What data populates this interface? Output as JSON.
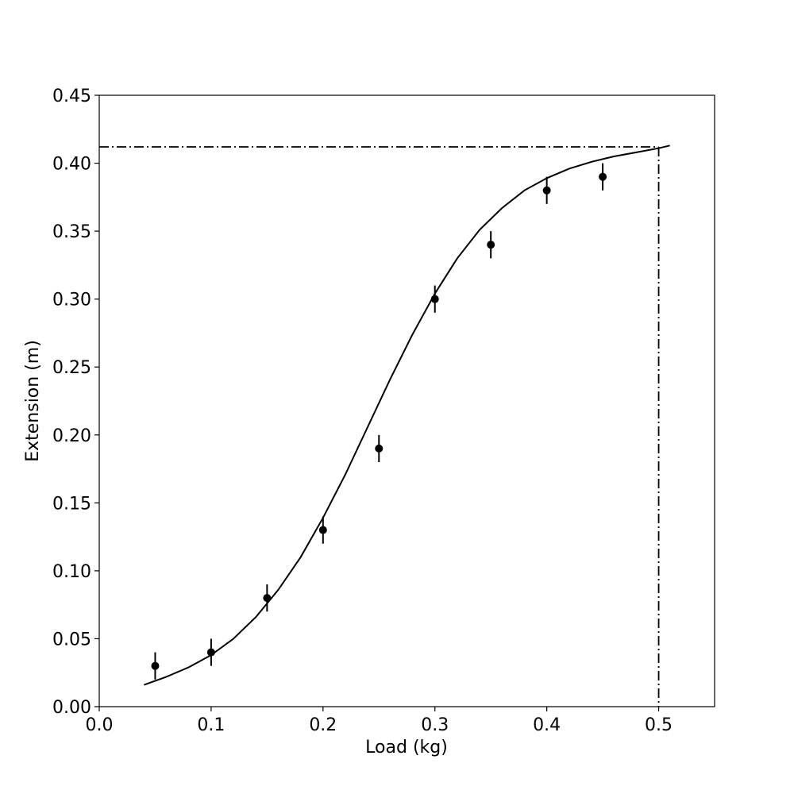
{
  "chart_data": {
    "type": "scatter",
    "title": "",
    "xlabel": "Load (kg)",
    "ylabel": "Extension (m)",
    "xlim": [
      0.0,
      0.55
    ],
    "ylim": [
      0.0,
      0.45
    ],
    "grid": false,
    "x_ticks": [
      0.0,
      0.1,
      0.2,
      0.3,
      0.4,
      0.5
    ],
    "x_tick_labels": [
      "0.0",
      "0.1",
      "0.2",
      "0.3",
      "0.4",
      "0.5"
    ],
    "y_ticks": [
      0.0,
      0.05,
      0.1,
      0.15,
      0.2,
      0.25,
      0.3,
      0.35,
      0.4,
      0.45
    ],
    "y_tick_labels": [
      "0.00",
      "0.05",
      "0.10",
      "0.15",
      "0.20",
      "0.25",
      "0.30",
      "0.35",
      "0.40",
      "0.45"
    ],
    "points": {
      "x": [
        0.05,
        0.1,
        0.15,
        0.2,
        0.25,
        0.3,
        0.35,
        0.4,
        0.45
      ],
      "y": [
        0.03,
        0.04,
        0.08,
        0.13,
        0.19,
        0.3,
        0.34,
        0.38,
        0.39
      ],
      "yerr": [
        0.01,
        0.01,
        0.01,
        0.01,
        0.01,
        0.01,
        0.01,
        0.01,
        0.01
      ]
    },
    "fit_curve": {
      "x": [
        0.04,
        0.06,
        0.08,
        0.1,
        0.12,
        0.14,
        0.16,
        0.18,
        0.2,
        0.22,
        0.24,
        0.26,
        0.28,
        0.3,
        0.32,
        0.34,
        0.36,
        0.38,
        0.4,
        0.42,
        0.44,
        0.46,
        0.48,
        0.5,
        0.51
      ],
      "y": [
        0.016,
        0.022,
        0.029,
        0.038,
        0.05,
        0.066,
        0.086,
        0.11,
        0.139,
        0.171,
        0.206,
        0.241,
        0.274,
        0.304,
        0.33,
        0.351,
        0.367,
        0.38,
        0.389,
        0.396,
        0.401,
        0.405,
        0.408,
        0.411,
        0.413
      ]
    },
    "reference_lines": {
      "x": 0.5,
      "y": 0.412,
      "style": "dash-dot"
    }
  }
}
